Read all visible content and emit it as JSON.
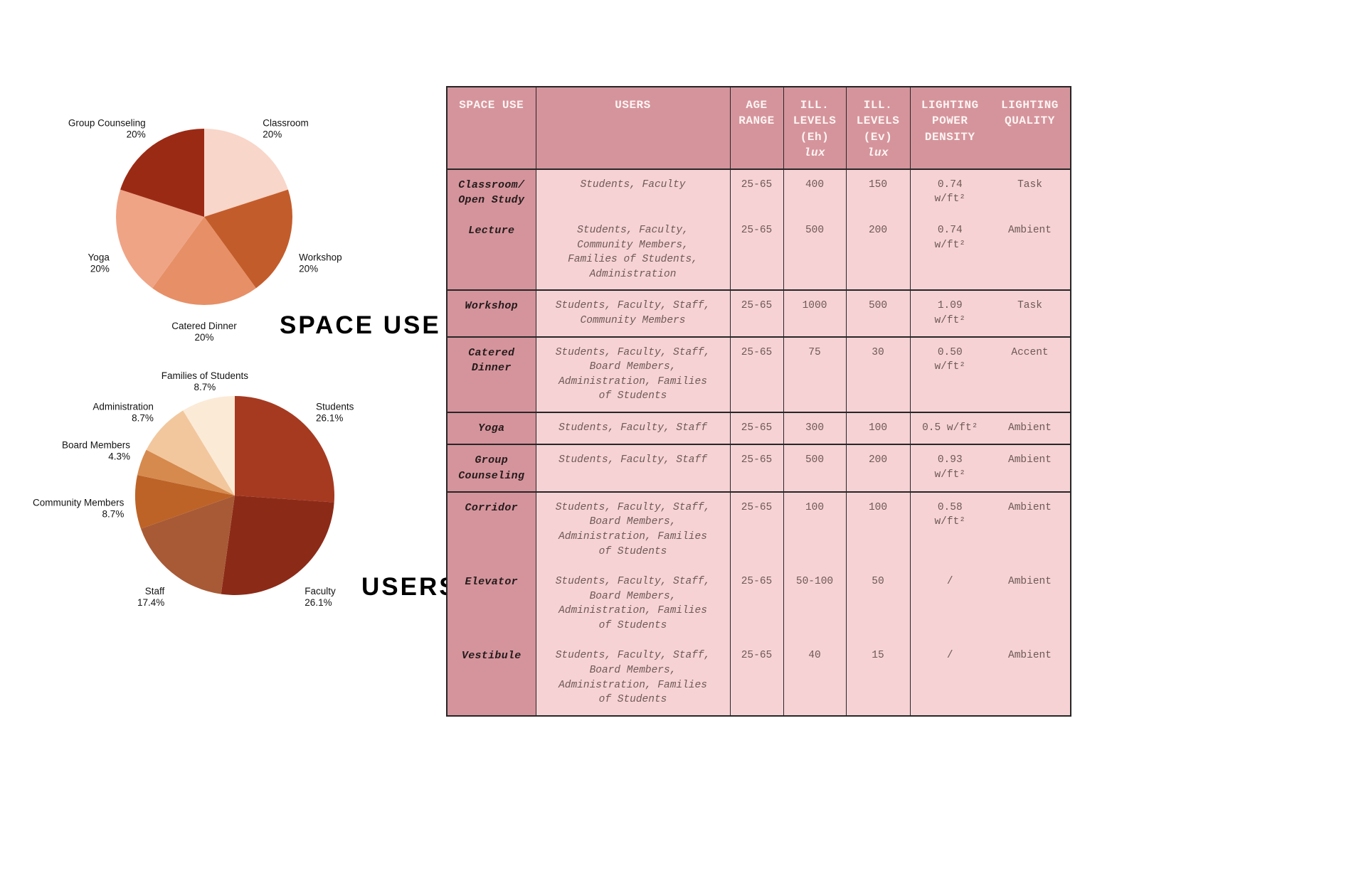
{
  "chart_data": [
    {
      "type": "pie",
      "title": "SPACE USE",
      "categories": [
        "Classroom",
        "Workshop",
        "Catered Dinner",
        "Yoga",
        "Group Counseling"
      ],
      "values": [
        20,
        20,
        20,
        20,
        20
      ],
      "labels_pct": [
        "20%",
        "20%",
        "20%",
        "20%",
        "20%"
      ],
      "colors": [
        "#f8d6c9",
        "#c35c2b",
        "#e78f66",
        "#efa486",
        "#9b2a14"
      ],
      "legend_position": "outside-labels"
    },
    {
      "type": "pie",
      "title": "USERS",
      "categories": [
        "Students",
        "Faculty",
        "Staff",
        "Community Members",
        "Board Members",
        "Administration",
        "Families of Students"
      ],
      "values": [
        26.1,
        26.1,
        17.4,
        8.7,
        4.3,
        8.7,
        8.7
      ],
      "labels_pct": [
        "26.1%",
        "26.1%",
        "17.4%",
        "8.7%",
        "4.3%",
        "8.7%",
        "8.7%"
      ],
      "colors": [
        "#a63a21",
        "#8c2a18",
        "#a85a36",
        "#bd6327",
        "#d68a4e",
        "#f2c79d",
        "#fbead6"
      ],
      "legend_position": "outside-labels"
    },
    {
      "type": "table",
      "headers": [
        {
          "label": "SPACE USE"
        },
        {
          "label": "USERS"
        },
        {
          "label": "AGE RANGE"
        },
        {
          "label": "ILL. LEVELS (Eh)",
          "sub": "lux"
        },
        {
          "label": "ILL. LEVELS (Ev)",
          "sub": "lux"
        },
        {
          "label": "LIGHTING POWER DENSITY"
        },
        {
          "label": "LIGHTING QUALITY"
        }
      ],
      "rows": [
        {
          "space": "Classroom/\nOpen Study",
          "users": "Students, Faculty",
          "age": "25-65",
          "eh": "400",
          "ev": "150",
          "lpd": "0.74\nw/ft²",
          "quality": "Task"
        },
        {
          "space": "Lecture",
          "users": "Students, Faculty,\nCommunity Members,\nFamilies of Students,\nAdministration",
          "age": "25-65",
          "eh": "500",
          "ev": "200",
          "lpd": "0.74\nw/ft²",
          "quality": "Ambient"
        },
        {
          "space": "Workshop",
          "users": "Students, Faculty, Staff,\nCommunity Members",
          "age": "25-65",
          "eh": "1000",
          "ev": "500",
          "lpd": "1.09\nw/ft²",
          "quality": "Task"
        },
        {
          "space": "Catered\nDinner",
          "users": "Students, Faculty, Staff,\nBoard Members,\nAdministration, Families\nof Students",
          "age": "25-65",
          "eh": "75",
          "ev": "30",
          "lpd": "0.50\nw/ft²",
          "quality": "Accent"
        },
        {
          "space": "Yoga",
          "users": "Students, Faculty,  Staff",
          "age": "25-65",
          "eh": "300",
          "ev": "100",
          "lpd": "0.5 w/ft²",
          "quality": "Ambient"
        },
        {
          "space": "Group\nCounseling",
          "users": "Students, Faculty, Staff",
          "age": "25-65",
          "eh": "500",
          "ev": "200",
          "lpd": "0.93\nw/ft²",
          "quality": "Ambient"
        },
        {
          "space": "Corridor",
          "users": "Students, Faculty, Staff,\nBoard Members,\nAdministration, Families\nof Students",
          "age": "25-65",
          "eh": "100",
          "ev": "100",
          "lpd": "0.58\nw/ft²",
          "quality": "Ambient"
        },
        {
          "space": "Elevator",
          "users": "Students, Faculty, Staff,\nBoard Members,\nAdministration, Families\nof Students",
          "age": "25-65",
          "eh": "50-100",
          "ev": "50",
          "lpd": "/",
          "quality": "Ambient"
        },
        {
          "space": "Vestibule",
          "users": "Students, Faculty, Staff,\nBoard Members,\nAdministration, Families\nof Students",
          "age": "25-65",
          "eh": "40",
          "ev": "15",
          "lpd": "/",
          "quality": "Ambient"
        }
      ]
    }
  ]
}
